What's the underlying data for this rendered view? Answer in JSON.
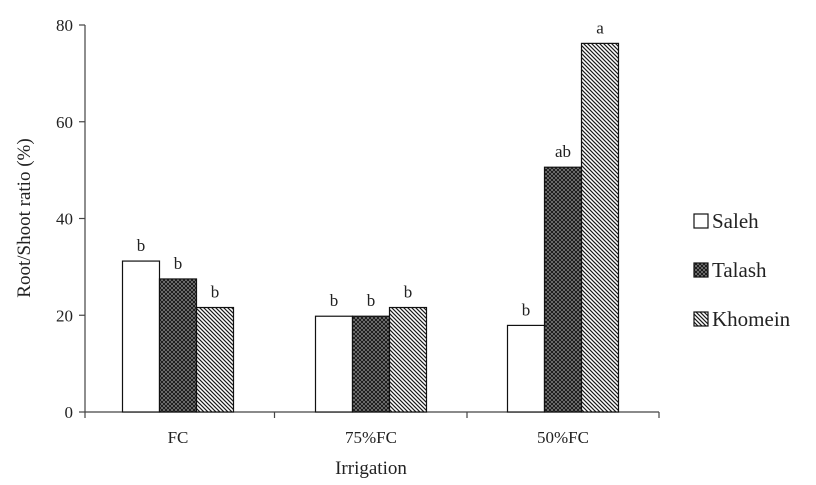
{
  "chart_data": {
    "type": "bar",
    "title": "",
    "xlabel": "Irrigation",
    "ylabel": "Root/Shoot ratio (%)",
    "ylim": [
      0,
      80
    ],
    "yticks": [
      0,
      20,
      40,
      60,
      80
    ],
    "categories": [
      "FC",
      "75%FC",
      "50%FC"
    ],
    "grid": false,
    "legend_position": "right",
    "series": [
      {
        "name": "Saleh",
        "values": [
          31.2,
          19.8,
          17.9
        ],
        "labels": [
          "b",
          "b",
          "b"
        ],
        "fill": "white",
        "color": "#ffffff"
      },
      {
        "name": "Talash",
        "values": [
          27.5,
          19.8,
          50.6
        ],
        "labels": [
          "b",
          "b",
          "ab"
        ],
        "fill": "crosshatch",
        "color": "#555555"
      },
      {
        "name": "Khomein",
        "values": [
          21.6,
          21.6,
          76.2
        ],
        "labels": [
          "b",
          "b",
          "a"
        ],
        "fill": "diagonal",
        "color": "#222222"
      }
    ]
  }
}
